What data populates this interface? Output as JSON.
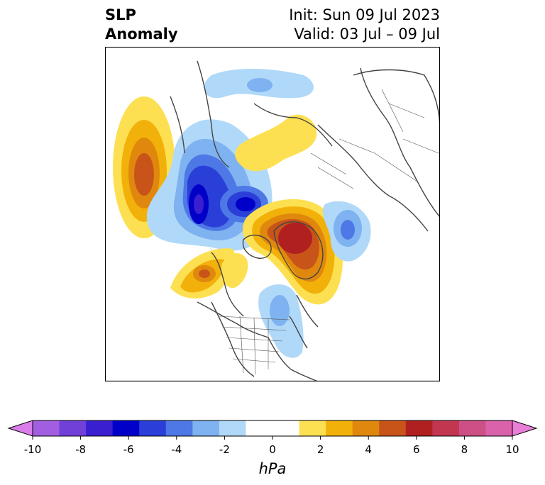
{
  "title": {
    "left_line1": "SLP",
    "left_line2": "Anomaly",
    "right_line1": "Init: Sun 09 Jul 2023",
    "right_line2": "Valid: 03 Jul – 09 Jul"
  },
  "colorbar": {
    "unit": "hPa",
    "ticks": [
      "-10",
      "-8",
      "-6",
      "-4",
      "-2",
      "0",
      "2",
      "4",
      "6",
      "8",
      "10"
    ],
    "extend_low_color": "#d97ee8",
    "extend_high_color": "#e87ed6",
    "bins": [
      "#a25ee0",
      "#7040d8",
      "#3a1fd0",
      "#0000c8",
      "#2a3fd8",
      "#4d78e6",
      "#7eb2f0",
      "#b0d8f8",
      "#ffffff",
      "#ffffff",
      "#fde051",
      "#f2b10a",
      "#e0880e",
      "#c85419",
      "#b12020",
      "#c23650",
      "#cc4f85",
      "#d962aa"
    ]
  },
  "map": {
    "projection": "north-polar-stereographic",
    "borders": "countries and US states",
    "anomaly_centers": [
      {
        "name": "positive-pacific-ne-russia",
        "sign": "positive",
        "peak_hpa": 5
      },
      {
        "name": "negative-siberia-arctic",
        "sign": "negative",
        "peak_hpa": -7
      },
      {
        "name": "negative-east-siberia",
        "sign": "negative",
        "peak_hpa": -6
      },
      {
        "name": "positive-greenland",
        "sign": "positive",
        "peak_hpa": 6
      },
      {
        "name": "positive-alaska-gulf",
        "sign": "positive",
        "peak_hpa": 4
      },
      {
        "name": "negative-north-atlantic",
        "sign": "negative",
        "peak_hpa": -3
      },
      {
        "name": "negative-eastern-us",
        "sign": "negative",
        "peak_hpa": -2
      },
      {
        "name": "positive-scandinavia",
        "sign": "positive",
        "peak_hpa": 2
      }
    ]
  }
}
